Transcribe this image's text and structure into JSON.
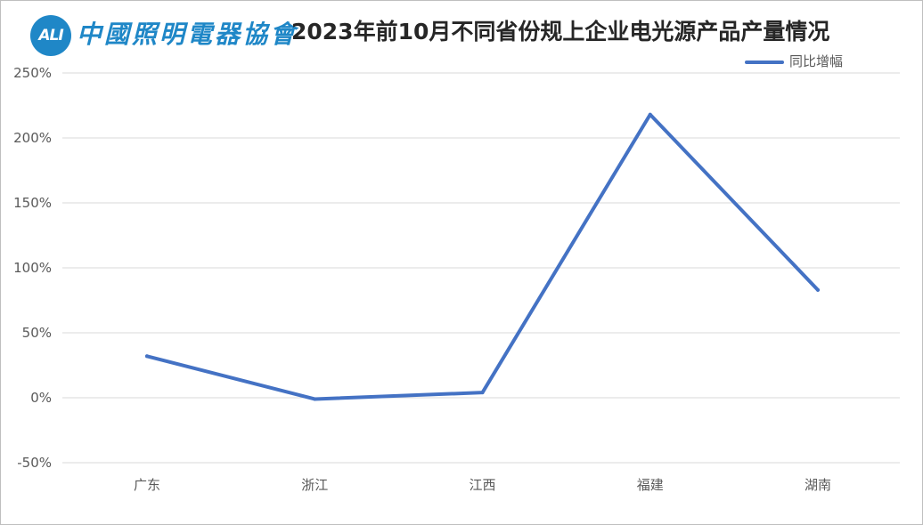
{
  "logo": {
    "badge_text": "ALI",
    "org_name": "中國照明電器協會"
  },
  "chart_data": {
    "type": "line",
    "title": "2023年前10月不同省份规上企业电光源产品产量情况",
    "xlabel": "",
    "ylabel": "",
    "categories": [
      "广东",
      "浙江",
      "江西",
      "福建",
      "湖南"
    ],
    "series": [
      {
        "name": "同比增幅",
        "values": [
          32,
          -1,
          4,
          218,
          83
        ],
        "color": "#4472c4"
      }
    ],
    "ylim": [
      -50,
      250
    ],
    "yticks": [
      -50,
      0,
      50,
      100,
      150,
      200,
      250
    ],
    "ytick_labels": [
      "-50%",
      "0%",
      "50%",
      "100%",
      "150%",
      "200%",
      "250%"
    ],
    "grid": true,
    "legend_position": "top-right"
  }
}
